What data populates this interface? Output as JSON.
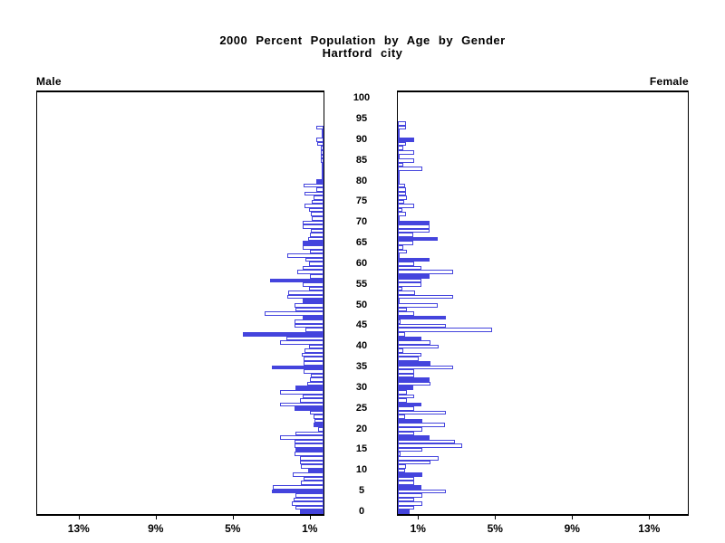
{
  "title": {
    "line1": "2000 Percent Population by Age by Gender",
    "line2": "Hartford city"
  },
  "side_labels": {
    "left": "Male",
    "right": "Female"
  },
  "age_axis": {
    "labels": [
      0,
      5,
      10,
      15,
      20,
      25,
      30,
      35,
      40,
      45,
      50,
      55,
      60,
      65,
      70,
      75,
      80,
      85,
      90,
      95,
      100
    ]
  },
  "pct_axis": {
    "ticks_percent": [
      1,
      5,
      9,
      13
    ],
    "suffix": "%"
  },
  "colors": {
    "bar_blue": "#4444dd",
    "axis_black": "#000000",
    "background": "#ffffff"
  },
  "chart_data": {
    "type": "bar",
    "subtype": "population-pyramid",
    "title": "2000 Percent Population by Age by Gender",
    "subtitle": "Hartford city",
    "unit": "percent of total population",
    "ages": [
      0,
      1,
      2,
      3,
      4,
      5,
      6,
      7,
      8,
      9,
      10,
      11,
      12,
      13,
      14,
      15,
      16,
      17,
      18,
      19,
      20,
      21,
      22,
      23,
      24,
      25,
      26,
      27,
      28,
      29,
      30,
      31,
      32,
      33,
      34,
      35,
      36,
      37,
      38,
      39,
      40,
      41,
      42,
      43,
      44,
      45,
      46,
      47,
      48,
      49,
      50,
      51,
      52,
      53,
      54,
      55,
      56,
      57,
      58,
      59,
      60,
      61,
      62,
      63,
      64,
      65,
      66,
      67,
      68,
      69,
      70,
      71,
      72,
      73,
      74,
      75,
      76,
      77,
      78,
      79,
      80,
      81,
      82,
      83,
      84,
      85,
      86,
      87,
      88,
      89,
      90,
      91,
      92,
      93,
      94
    ],
    "axis_range_percent": [
      0,
      15
    ],
    "axis_tick_percents": [
      1,
      5,
      9,
      13
    ],
    "series": [
      {
        "name": "Male",
        "direction": "left",
        "values": [
          1.22,
          1.47,
          1.66,
          1.55,
          1.45,
          2.7,
          2.64,
          1.2,
          1.04,
          1.58,
          0.8,
          1.18,
          1.22,
          1.22,
          1.49,
          1.46,
          1.49,
          1.49,
          2.26,
          1.44,
          0.3,
          0.5,
          0.45,
          0.53,
          0.71,
          1.53,
          2.26,
          1.22,
          1.06,
          2.26,
          1.46,
          0.84,
          0.71,
          0.65,
          1.02,
          2.7,
          1.05,
          1.05,
          1.15,
          1.0,
          0.76,
          2.26,
          1.95,
          4.2,
          0.96,
          1.49,
          1.49,
          1.1,
          3.08,
          1.46,
          1.49,
          1.1,
          1.89,
          1.85,
          0.76,
          1.1,
          2.8,
          0.73,
          1.38,
          1.07,
          0.75,
          0.93,
          1.86,
          0.7,
          1.07,
          1.1,
          0.79,
          0.73,
          0.64,
          1.07,
          1.1,
          0.6,
          0.64,
          0.75,
          1.0,
          0.6,
          0.53,
          1.0,
          0.37,
          1.05,
          0.36,
          0.1,
          0.1,
          0.1,
          0.1,
          0.12,
          0.12,
          0.15,
          0.15,
          0.35,
          0.4,
          0.05,
          0.05,
          0.4,
          0.0
        ],
        "solid_filled_ages": [
          0,
          5,
          10,
          15,
          21,
          25,
          30,
          35,
          43,
          47,
          51,
          56,
          65,
          80
        ]
      },
      {
        "name": "Female",
        "direction": "right",
        "values": [
          0.59,
          0.86,
          1.27,
          0.86,
          1.27,
          2.51,
          1.24,
          0.86,
          0.86,
          1.27,
          0.39,
          0.44,
          1.71,
          2.14,
          0.16,
          1.27,
          3.33,
          2.95,
          1.67,
          0.86,
          1.27,
          2.45,
          1.27,
          0.39,
          2.51,
          0.86,
          1.24,
          0.47,
          0.86,
          0.47,
          0.81,
          1.71,
          1.67,
          0.86,
          0.86,
          2.88,
          1.71,
          1.06,
          1.21,
          0.28,
          2.14,
          1.71,
          1.24,
          0.39,
          4.88,
          2.51,
          0.16,
          2.48,
          0.86,
          0.47,
          2.09,
          0.1,
          2.88,
          0.9,
          0.23,
          1.21,
          1.21,
          1.67,
          2.87,
          1.24,
          0.86,
          1.67,
          0.1,
          0.47,
          0.28,
          0.81,
          2.09,
          0.81,
          1.67,
          1.67,
          1.67,
          0.1,
          0.44,
          0.23,
          0.86,
          0.31,
          0.47,
          0.44,
          0.44,
          0.39,
          0.1,
          0.1,
          0.1,
          1.29,
          0.3,
          0.86,
          0.1,
          0.86,
          0.28,
          0.44,
          0.86,
          0.1,
          0.1,
          0.44,
          0.44
        ],
        "solid_filled_ages": [
          0,
          6,
          9,
          18,
          22,
          26,
          30,
          32,
          36,
          42,
          47,
          57,
          61,
          66,
          70,
          90
        ]
      }
    ],
    "legend": "hollow outlined bars = single year of age; solid filled bars = highlighted ages",
    "grid": false
  }
}
